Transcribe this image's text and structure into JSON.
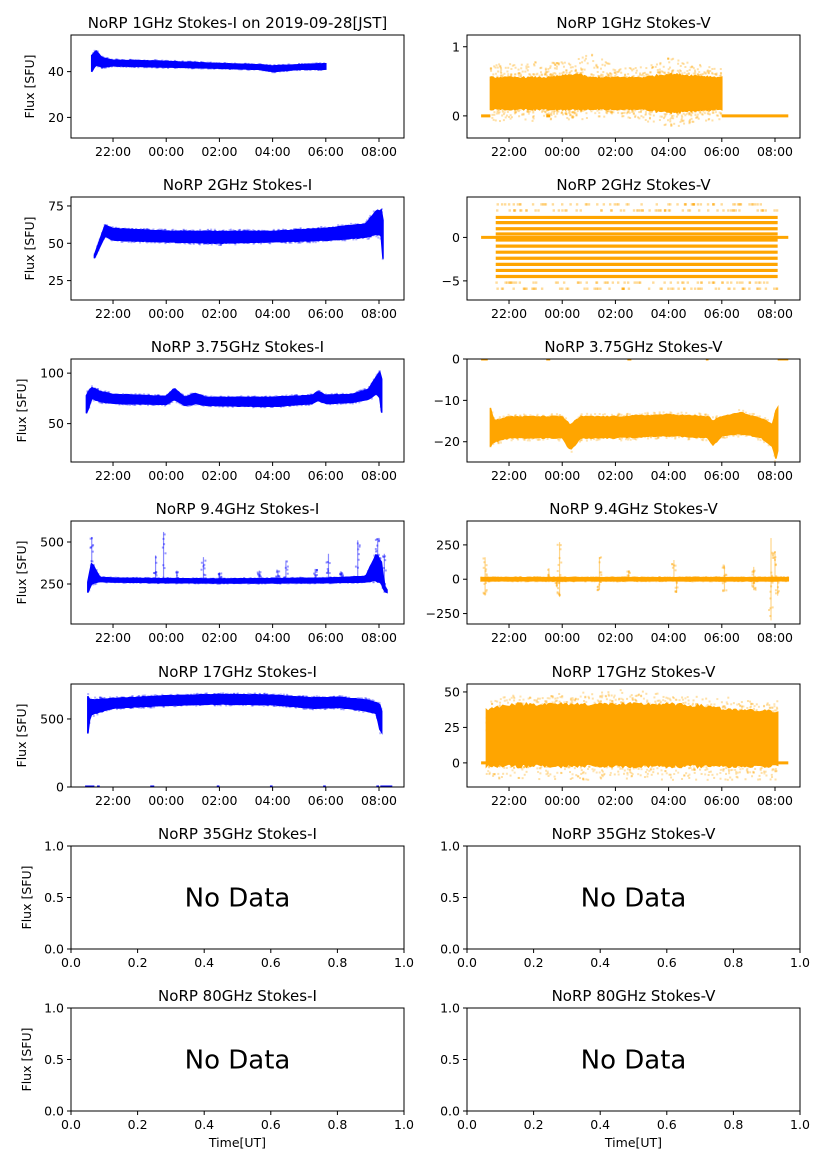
{
  "figure": {
    "ylabel": "Flux [SFU]",
    "xlabel": "Time[UT]",
    "no_data_text": "No Data",
    "colors": {
      "stokes_i": "#0000ff",
      "stokes_v": "#ffa500"
    }
  },
  "chart_data": [
    {
      "id": "1ghz-i",
      "type": "scatter",
      "title": "NoRP 1GHz Stokes-I on 2019-09-28[JST]",
      "ylabel": "Flux [SFU]",
      "xlabel": "",
      "series_color": "stokes_i",
      "xlim": [
        20.42,
        32.94
      ],
      "ylim": [
        11,
        56
      ],
      "yticks": [
        20,
        40
      ],
      "xticks": [
        22,
        24,
        26,
        28,
        30,
        32
      ],
      "xtick_labels": [
        "22:00",
        "00:00",
        "02:00",
        "04:00",
        "06:00",
        "08:00"
      ],
      "band": [
        [
          21.2,
          40,
          47
        ],
        [
          21.35,
          43,
          49
        ],
        [
          21.6,
          42,
          46
        ],
        [
          22,
          42.5,
          45
        ],
        [
          24,
          42,
          44.5
        ],
        [
          26,
          41.5,
          43.5
        ],
        [
          27.5,
          41,
          43
        ],
        [
          28,
          40,
          42.5
        ],
        [
          29,
          41,
          43
        ],
        [
          30,
          41,
          43.5
        ]
      ],
      "flat": [],
      "outliers": []
    },
    {
      "id": "1ghz-v",
      "type": "scatter",
      "title": "NoRP 1GHz Stokes-V",
      "ylabel": "",
      "xlabel": "",
      "series_color": "stokes_v",
      "xlim": [
        20.42,
        32.94
      ],
      "ylim": [
        -0.32,
        1.17
      ],
      "yticks": [
        0,
        1
      ],
      "xticks": [
        22,
        24,
        26,
        28,
        30,
        32
      ],
      "xtick_labels": [
        "22:00",
        "00:00",
        "02:00",
        "04:00",
        "06:00",
        "08:00"
      ],
      "band": [
        [
          21.3,
          0.1,
          0.55
        ],
        [
          23.5,
          0.1,
          0.55
        ],
        [
          24.6,
          0.1,
          0.6
        ],
        [
          25,
          0.1,
          0.55
        ],
        [
          27,
          0.1,
          0.55
        ],
        [
          28,
          0.05,
          0.6
        ],
        [
          30,
          0.1,
          0.55
        ]
      ],
      "halo": [
        [
          21.3,
          -0.1,
          0.75
        ],
        [
          24.5,
          -0.05,
          0.8
        ],
        [
          25,
          -0.05,
          0.95
        ],
        [
          26,
          0,
          0.7
        ],
        [
          27.5,
          -0.1,
          0.75
        ],
        [
          28,
          -0.2,
          0.85
        ],
        [
          29,
          -0.1,
          0.75
        ],
        [
          30,
          -0.05,
          0.7
        ]
      ],
      "flat": [
        [
          20.95,
          21.3,
          0
        ],
        [
          23.4,
          23.55,
          0
        ],
        [
          30,
          32.5,
          0
        ]
      ],
      "outliers": []
    },
    {
      "id": "2ghz-i",
      "type": "scatter",
      "title": "NoRP 2GHz Stokes-I",
      "ylabel": "Flux [SFU]",
      "xlabel": "",
      "series_color": "stokes_i",
      "xlim": [
        20.42,
        32.94
      ],
      "ylim": [
        12,
        81
      ],
      "yticks": [
        25,
        50,
        75
      ],
      "xticks": [
        22,
        24,
        26,
        28,
        30,
        32
      ],
      "xtick_labels": [
        "22:00",
        "00:00",
        "02:00",
        "04:00",
        "06:00",
        "08:00"
      ],
      "band": [
        [
          21.3,
          40,
          42
        ],
        [
          21.7,
          55,
          62
        ],
        [
          22,
          52,
          60
        ],
        [
          24,
          51,
          58
        ],
        [
          26,
          50,
          58
        ],
        [
          28,
          51,
          58
        ],
        [
          30,
          52,
          60
        ],
        [
          31.5,
          54,
          63
        ],
        [
          31.9,
          56,
          72
        ],
        [
          32.1,
          55,
          72
        ],
        [
          32.15,
          40,
          65
        ]
      ],
      "flat": [],
      "outliers": []
    },
    {
      "id": "2ghz-v",
      "type": "scatter",
      "title": "NoRP 2GHz Stokes-V",
      "ylabel": "",
      "xlabel": "",
      "series_color": "stokes_v",
      "xlim": [
        20.42,
        32.94
      ],
      "ylim": [
        -7.2,
        4.65
      ],
      "yticks": [
        -5,
        0
      ],
      "xticks": [
        22,
        24,
        26,
        28,
        30,
        32
      ],
      "xtick_labels": [
        "22:00",
        "00:00",
        "02:00",
        "04:00",
        "06:00",
        "08:00"
      ],
      "levels": [
        2.3,
        1.7,
        1.0,
        0.4,
        -0.3,
        -1.0,
        -1.7,
        -2.4,
        -3.1,
        -3.8,
        -4.5
      ],
      "faint_levels": [
        3.1,
        3.8,
        -5.2,
        -5.9
      ],
      "level_range": [
        21.5,
        32.1
      ],
      "flat": [
        [
          20.95,
          32.5,
          0
        ]
      ],
      "outliers": []
    },
    {
      "id": "3.75ghz-i",
      "type": "scatter",
      "title": "NoRP 3.75GHz Stokes-I",
      "ylabel": "Flux [SFU]",
      "xlabel": "",
      "series_color": "stokes_i",
      "xlim": [
        20.42,
        32.94
      ],
      "ylim": [
        12,
        114
      ],
      "yticks": [
        50,
        100
      ],
      "xticks": [
        22,
        24,
        26,
        28,
        30,
        32
      ],
      "xtick_labels": [
        "22:00",
        "00:00",
        "02:00",
        "04:00",
        "06:00",
        "08:00"
      ],
      "band": [
        [
          21.0,
          60,
          78
        ],
        [
          21.2,
          75,
          86
        ],
        [
          21.5,
          72,
          82
        ],
        [
          22,
          70,
          79
        ],
        [
          24,
          69,
          77
        ],
        [
          24.3,
          74,
          85
        ],
        [
          24.7,
          68,
          76
        ],
        [
          25.1,
          70,
          80
        ],
        [
          25.5,
          68,
          76
        ],
        [
          28,
          67,
          76
        ],
        [
          29.5,
          70,
          78
        ],
        [
          29.7,
          73,
          82
        ],
        [
          30,
          70,
          78
        ],
        [
          31,
          71,
          79
        ],
        [
          31.6,
          74,
          84
        ],
        [
          31.9,
          80,
          96
        ],
        [
          32.05,
          75,
          102
        ],
        [
          32.1,
          60,
          95
        ]
      ],
      "flat": [],
      "outliers": []
    },
    {
      "id": "3.75ghz-v",
      "type": "scatter",
      "title": "NoRP 3.75GHz Stokes-V",
      "ylabel": "",
      "xlabel": "",
      "series_color": "stokes_v",
      "xlim": [
        20.42,
        32.94
      ],
      "ylim": [
        -24.9,
        0
      ],
      "yticks": [
        -20,
        -10,
        0
      ],
      "xticks": [
        22,
        24,
        26,
        28,
        30,
        32
      ],
      "xtick_labels": [
        "22:00",
        "00:00",
        "02:00",
        "04:00",
        "06:00",
        "08:00"
      ],
      "band": [
        [
          21.3,
          -21,
          -12
        ],
        [
          21.45,
          -20,
          -15
        ],
        [
          22,
          -19,
          -14
        ],
        [
          24,
          -19,
          -14
        ],
        [
          24.3,
          -22,
          -16
        ],
        [
          24.7,
          -19,
          -14
        ],
        [
          26,
          -19,
          -14
        ],
        [
          28,
          -18.5,
          -13.5
        ],
        [
          29.5,
          -19,
          -14
        ],
        [
          29.65,
          -21,
          -15
        ],
        [
          30,
          -18.5,
          -14
        ],
        [
          30.7,
          -18,
          -13
        ],
        [
          31.5,
          -19,
          -14.5
        ],
        [
          31.9,
          -21,
          -16
        ],
        [
          32.05,
          -24.5,
          -12
        ],
        [
          32.1,
          -22,
          -12
        ]
      ],
      "flat": [
        [
          20.95,
          21.2,
          0
        ],
        [
          23.4,
          23.55,
          0
        ],
        [
          26.45,
          26.6,
          0
        ],
        [
          29.4,
          29.5,
          0
        ],
        [
          32.1,
          32.5,
          0
        ]
      ],
      "outliers": []
    },
    {
      "id": "9.4ghz-i",
      "type": "scatter",
      "title": "NoRP 9.4GHz Stokes-I",
      "ylabel": "Flux [SFU]",
      "xlabel": "",
      "series_color": "stokes_i",
      "xlim": [
        20.42,
        32.94
      ],
      "ylim": [
        12,
        625
      ],
      "yticks": [
        250,
        500
      ],
      "xticks": [
        22,
        24,
        26,
        28,
        30,
        32
      ],
      "xtick_labels": [
        "22:00",
        "00:00",
        "02:00",
        "04:00",
        "06:00",
        "08:00"
      ],
      "band": [
        [
          21.05,
          200,
          260
        ],
        [
          21.2,
          250,
          380
        ],
        [
          21.5,
          265,
          290
        ],
        [
          22,
          262,
          285
        ],
        [
          24,
          258,
          282
        ],
        [
          26,
          256,
          280
        ],
        [
          28,
          256,
          282
        ],
        [
          30,
          258,
          285
        ],
        [
          31.5,
          262,
          295
        ],
        [
          31.9,
          270,
          430
        ],
        [
          32.1,
          250,
          380
        ],
        [
          32.2,
          205,
          240
        ],
        [
          32.3,
          200,
          215
        ]
      ],
      "flat": [],
      "spikes": [
        [
          21.2,
          530
        ],
        [
          23.6,
          420
        ],
        [
          23.9,
          560
        ],
        [
          24.4,
          330
        ],
        [
          25.4,
          410
        ],
        [
          26.0,
          320
        ],
        [
          27.5,
          330
        ],
        [
          28.2,
          330
        ],
        [
          28.5,
          390
        ],
        [
          29.6,
          340
        ],
        [
          30.1,
          430
        ],
        [
          30.6,
          320
        ],
        [
          31.2,
          510
        ],
        [
          31.95,
          520
        ],
        [
          32.2,
          430
        ]
      ],
      "outliers": []
    },
    {
      "id": "9.4ghz-v",
      "type": "scatter",
      "title": "NoRP 9.4GHz Stokes-V",
      "ylabel": "",
      "xlabel": "",
      "series_color": "stokes_v",
      "xlim": [
        20.42,
        32.94
      ],
      "ylim": [
        -326,
        424
      ],
      "yticks": [
        -250,
        0,
        250
      ],
      "xticks": [
        22,
        24,
        26,
        28,
        30,
        32
      ],
      "xtick_labels": [
        "22:00",
        "00:00",
        "02:00",
        "04:00",
        "06:00",
        "08:00"
      ],
      "band": [
        [
          20.95,
          -12,
          12
        ],
        [
          32.5,
          -12,
          12
        ]
      ],
      "flat": [],
      "spikes": [
        [
          21.1,
          160
        ],
        [
          21.1,
          -120
        ],
        [
          23.5,
          80
        ],
        [
          23.8,
          -60
        ],
        [
          23.9,
          270
        ],
        [
          23.9,
          -130
        ],
        [
          25.4,
          160
        ],
        [
          25.4,
          -80
        ],
        [
          26.5,
          60
        ],
        [
          28.2,
          140
        ],
        [
          28.3,
          -100
        ],
        [
          30.1,
          100
        ],
        [
          30.1,
          -90
        ],
        [
          31.2,
          90
        ],
        [
          31.2,
          -80
        ],
        [
          31.85,
          300
        ],
        [
          31.85,
          -300
        ],
        [
          32.0,
          200
        ],
        [
          32.1,
          -120
        ]
      ],
      "outliers": []
    },
    {
      "id": "17ghz-i",
      "type": "scatter",
      "title": "NoRP 17GHz Stokes-I",
      "ylabel": "Flux [SFU]",
      "xlabel": "",
      "series_color": "stokes_i",
      "xlim": [
        20.42,
        32.94
      ],
      "ylim": [
        0,
        757
      ],
      "yticks": [
        0,
        500
      ],
      "xticks": [
        22,
        24,
        26,
        28,
        30,
        32
      ],
      "xtick_labels": [
        "22:00",
        "00:00",
        "02:00",
        "04:00",
        "06:00",
        "08:00"
      ],
      "band": [
        [
          21.05,
          400,
          660
        ],
        [
          21.15,
          530,
          640
        ],
        [
          22,
          580,
          650
        ],
        [
          24,
          600,
          670
        ],
        [
          26,
          610,
          680
        ],
        [
          28,
          605,
          675
        ],
        [
          29.5,
          580,
          655
        ],
        [
          30.5,
          585,
          660
        ],
        [
          31.5,
          560,
          640
        ],
        [
          31.9,
          540,
          620
        ],
        [
          32.05,
          410,
          600
        ],
        [
          32.1,
          400,
          560
        ]
      ],
      "flat": [
        [
          20.95,
          21.3,
          0
        ],
        [
          21.4,
          21.5,
          0
        ],
        [
          23.4,
          23.55,
          0
        ],
        [
          25.9,
          26.0,
          0
        ],
        [
          27.9,
          28.0,
          0
        ],
        [
          29.9,
          30.0,
          0
        ],
        [
          31.9,
          32.0,
          0
        ],
        [
          32.05,
          32.5,
          0
        ]
      ],
      "outliers": []
    },
    {
      "id": "17ghz-v",
      "type": "scatter",
      "title": "NoRP 17GHz Stokes-V",
      "ylabel": "",
      "xlabel": "",
      "series_color": "stokes_v",
      "xlim": [
        20.42,
        32.94
      ],
      "ylim": [
        -17,
        55.6
      ],
      "yticks": [
        0,
        25,
        50
      ],
      "xticks": [
        22,
        24,
        26,
        28,
        30,
        32
      ],
      "xtick_labels": [
        "22:00",
        "00:00",
        "02:00",
        "04:00",
        "06:00",
        "08:00"
      ],
      "band": [
        [
          21.15,
          -2,
          37
        ],
        [
          22,
          -2,
          41
        ],
        [
          24,
          -2,
          41
        ],
        [
          26,
          -2,
          41
        ],
        [
          28,
          -2,
          41
        ],
        [
          29.9,
          -2,
          39
        ],
        [
          30,
          -2,
          37
        ],
        [
          32.1,
          -2,
          36
        ]
      ],
      "halo": [
        [
          21.15,
          -12,
          45
        ],
        [
          26,
          -12,
          52
        ],
        [
          32.1,
          -12,
          44
        ]
      ],
      "flat": [
        [
          20.95,
          32.5,
          0
        ]
      ],
      "outliers": []
    },
    {
      "id": "35ghz-i",
      "type": "empty",
      "title": "NoRP 35GHz Stokes-I",
      "ylabel": "Flux [SFU]",
      "xlabel": "",
      "xlim": [
        0,
        1
      ],
      "ylim": [
        0,
        1
      ],
      "yticks": [
        0.0,
        0.5,
        1.0
      ],
      "xticks": [
        0.0,
        0.2,
        0.4,
        0.6,
        0.8,
        1.0
      ],
      "xtick_labels": [
        "0.0",
        "0.2",
        "0.4",
        "0.6",
        "0.8",
        "1.0"
      ],
      "ytick_labels": [
        "0.0",
        "0.5",
        "1.0"
      ],
      "annotation": "No Data"
    },
    {
      "id": "35ghz-v",
      "type": "empty",
      "title": "NoRP 35GHz Stokes-V",
      "ylabel": "",
      "xlabel": "",
      "xlim": [
        0,
        1
      ],
      "ylim": [
        0,
        1
      ],
      "yticks": [
        0.0,
        0.5,
        1.0
      ],
      "xticks": [
        0.0,
        0.2,
        0.4,
        0.6,
        0.8,
        1.0
      ],
      "xtick_labels": [
        "0.0",
        "0.2",
        "0.4",
        "0.6",
        "0.8",
        "1.0"
      ],
      "ytick_labels": [
        "0.0",
        "0.5",
        "1.0"
      ],
      "annotation": "No Data"
    },
    {
      "id": "80ghz-i",
      "type": "empty",
      "title": "NoRP 80GHz Stokes-I",
      "ylabel": "Flux [SFU]",
      "xlabel": "Time[UT]",
      "xlim": [
        0,
        1
      ],
      "ylim": [
        0,
        1
      ],
      "yticks": [
        0.0,
        0.5,
        1.0
      ],
      "xticks": [
        0.0,
        0.2,
        0.4,
        0.6,
        0.8,
        1.0
      ],
      "xtick_labels": [
        "0.0",
        "0.2",
        "0.4",
        "0.6",
        "0.8",
        "1.0"
      ],
      "ytick_labels": [
        "0.0",
        "0.5",
        "1.0"
      ],
      "annotation": "No Data"
    },
    {
      "id": "80ghz-v",
      "type": "empty",
      "title": "NoRP 80GHz Stokes-V",
      "ylabel": "",
      "xlabel": "Time[UT]",
      "xlim": [
        0,
        1
      ],
      "ylim": [
        0,
        1
      ],
      "yticks": [
        0.0,
        0.5,
        1.0
      ],
      "xticks": [
        0.0,
        0.2,
        0.4,
        0.6,
        0.8,
        1.0
      ],
      "xtick_labels": [
        "0.0",
        "0.2",
        "0.4",
        "0.6",
        "0.8",
        "1.0"
      ],
      "ytick_labels": [
        "0.0",
        "0.5",
        "1.0"
      ],
      "annotation": "No Data"
    }
  ]
}
